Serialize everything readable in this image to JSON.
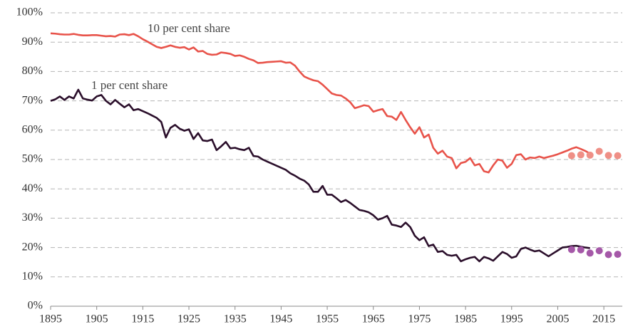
{
  "chart_data": {
    "type": "line",
    "annotations": [
      {
        "text": "10 per cent share",
        "series": 0
      },
      {
        "text": "1 per cent share",
        "series": 1
      }
    ],
    "x": [
      1895,
      1896,
      1897,
      1898,
      1899,
      1900,
      1901,
      1902,
      1903,
      1904,
      1905,
      1906,
      1907,
      1908,
      1909,
      1910,
      1911,
      1912,
      1913,
      1914,
      1915,
      1916,
      1917,
      1918,
      1919,
      1920,
      1921,
      1922,
      1923,
      1924,
      1925,
      1926,
      1927,
      1928,
      1929,
      1930,
      1931,
      1932,
      1933,
      1934,
      1935,
      1936,
      1937,
      1938,
      1939,
      1940,
      1941,
      1942,
      1943,
      1944,
      1945,
      1946,
      1947,
      1948,
      1949,
      1950,
      1951,
      1952,
      1953,
      1954,
      1955,
      1956,
      1957,
      1958,
      1959,
      1960,
      1961,
      1962,
      1963,
      1964,
      1965,
      1966,
      1967,
      1968,
      1969,
      1970,
      1971,
      1972,
      1973,
      1974,
      1975,
      1976,
      1977,
      1978,
      1979,
      1980,
      1981,
      1982,
      1983,
      1984,
      1985,
      1986,
      1987,
      1988,
      1989,
      1990,
      1991,
      1992,
      1993,
      1994,
      1995,
      1996,
      1997,
      1998,
      1999,
      2000,
      2001,
      2002,
      2003,
      2004,
      2005,
      2006,
      2007,
      2008,
      2009,
      2010,
      2011,
      2012
    ],
    "series": [
      {
        "color": "#e8534a",
        "style": "line",
        "values": [
          93.0,
          92.9,
          92.7,
          92.6,
          92.6,
          92.8,
          92.5,
          92.3,
          92.3,
          92.4,
          92.4,
          92.2,
          92.0,
          92.1,
          91.9,
          92.6,
          92.7,
          92.4,
          92.8,
          92.0,
          91.0,
          90.2,
          89.3,
          88.4,
          88.0,
          88.4,
          88.9,
          88.4,
          88.1,
          88.3,
          87.5,
          88.2,
          86.8,
          87.0,
          86.0,
          85.7,
          85.8,
          86.5,
          86.3,
          86.0,
          85.3,
          85.5,
          85.0,
          84.3,
          83.8,
          82.9,
          83.0,
          83.2,
          83.3,
          83.4,
          83.5,
          83.0,
          83.1,
          82.0,
          80.0,
          78.3,
          77.6,
          77.0,
          76.7,
          75.5,
          74.0,
          72.5,
          72.0,
          71.8,
          70.8,
          69.5,
          67.5,
          68.0,
          68.5,
          68.2,
          66.3,
          66.8,
          67.2,
          64.8,
          64.6,
          63.5,
          66.2,
          63.5,
          61.0,
          58.8,
          61.0,
          57.5,
          58.5,
          54.0,
          52.0,
          53.0,
          51.0,
          50.5,
          47.0,
          48.8,
          49.2,
          50.5,
          48.0,
          48.5,
          46.0,
          45.6,
          48.0,
          50.0,
          49.6,
          47.2,
          48.5,
          51.5,
          51.8,
          50.0,
          50.7,
          50.5,
          51.0,
          50.5,
          50.9,
          51.3,
          51.8,
          52.4,
          53.0,
          53.7,
          54.2,
          53.6,
          52.9,
          52.0
        ]
      },
      {
        "color": "#2b0f2b",
        "style": "line",
        "values": [
          70.0,
          70.5,
          71.5,
          70.3,
          71.5,
          70.8,
          73.8,
          70.8,
          70.4,
          70.1,
          71.5,
          72.0,
          70.0,
          68.8,
          70.3,
          69.0,
          67.8,
          68.8,
          66.8,
          67.2,
          66.5,
          65.8,
          65.0,
          64.2,
          62.8,
          57.5,
          60.8,
          61.8,
          60.5,
          59.8,
          60.3,
          57.0,
          59.0,
          56.5,
          56.3,
          56.8,
          53.2,
          54.5,
          56.0,
          53.8,
          54.0,
          53.5,
          53.2,
          54.0,
          51.2,
          51.0,
          50.0,
          49.3,
          48.6,
          47.9,
          47.2,
          46.5,
          45.3,
          44.5,
          43.5,
          42.8,
          41.5,
          39.0,
          39.0,
          41.0,
          38.0,
          38.0,
          36.8,
          35.5,
          36.2,
          35.2,
          34.0,
          32.8,
          32.5,
          32.0,
          31.0,
          29.5,
          30.0,
          30.8,
          27.8,
          27.5,
          27.0,
          28.5,
          27.0,
          24.0,
          22.5,
          23.5,
          20.5,
          21.0,
          18.5,
          18.8,
          17.5,
          17.2,
          17.5,
          15.3,
          16.0,
          16.5,
          16.8,
          15.3,
          16.8,
          16.3,
          15.5,
          17.0,
          18.5,
          17.8,
          16.5,
          17.0,
          19.5,
          20.0,
          19.3,
          18.7,
          19.0,
          18.0,
          17.0,
          18.0,
          19.0,
          20.0,
          20.2,
          20.5,
          20.6,
          20.3,
          20.0,
          19.8
        ]
      },
      {
        "color": "#ef8f86",
        "style": "markers",
        "x": [
          2008,
          2010,
          2012,
          2014,
          2016,
          2018
        ],
        "values": [
          51.3,
          51.6,
          51.5,
          52.8,
          51.4,
          51.3
        ]
      },
      {
        "color": "#a558a8",
        "style": "markers",
        "x": [
          2008,
          2010,
          2012,
          2014,
          2016,
          2018
        ],
        "values": [
          19.3,
          19.2,
          18.1,
          18.9,
          17.6,
          17.7
        ]
      }
    ],
    "xlim": [
      1895,
      2019
    ],
    "xticks": [
      1895,
      1905,
      1915,
      1925,
      1935,
      1945,
      1955,
      1965,
      1975,
      1985,
      1995,
      2005,
      2015
    ],
    "ylim": [
      0,
      100
    ],
    "yticks": [
      {
        "value": 0,
        "label": "0%"
      },
      {
        "value": 10,
        "label": "10%"
      },
      {
        "value": 20,
        "label": "20%"
      },
      {
        "value": 30,
        "label": "30%"
      },
      {
        "value": 40,
        "label": "40%"
      },
      {
        "value": 50,
        "label": "50%"
      },
      {
        "value": 60,
        "label": "60%"
      },
      {
        "value": 70,
        "label": "70%"
      },
      {
        "value": 80,
        "label": "80%"
      },
      {
        "value": 90,
        "label": "90%"
      },
      {
        "value": 100,
        "label": "100%"
      }
    ],
    "grid": true
  }
}
